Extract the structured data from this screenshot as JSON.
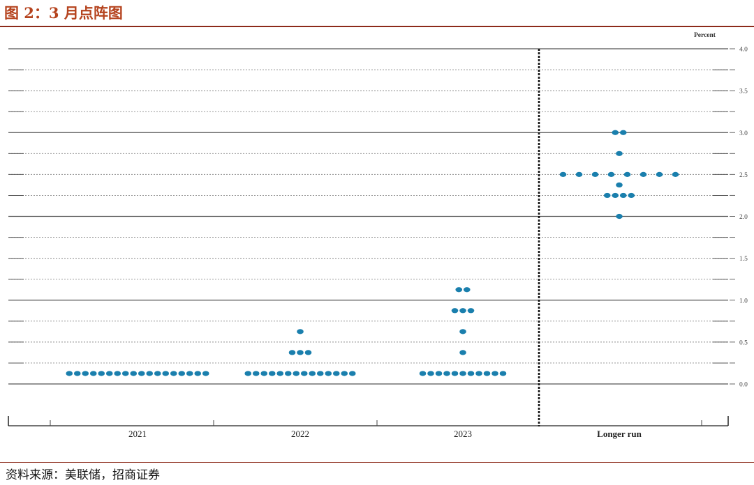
{
  "figure": {
    "title": "图 2：3 月点阵图",
    "source": "资料来源：美联储，招商证券"
  },
  "colors": {
    "dot": "#1a7fad",
    "title": "#b5431e",
    "rule": "#8c2a1a"
  },
  "chart_data": {
    "type": "scatter",
    "unit_label": "Percent",
    "ylim": [
      0,
      4
    ],
    "y_ticks": [
      {
        "value": 0,
        "label": "0.0"
      },
      {
        "value": 0.5,
        "label": "0.5"
      },
      {
        "value": 1,
        "label": "1.0"
      },
      {
        "value": 1.5,
        "label": "1.5"
      },
      {
        "value": 2,
        "label": "2.0"
      },
      {
        "value": 2.5,
        "label": "2.5"
      },
      {
        "value": 3,
        "label": "3.0"
      },
      {
        "value": 3.5,
        "label": "3.5"
      },
      {
        "value": 4,
        "label": "4.0"
      }
    ],
    "grid": true,
    "categories": [
      "2021",
      "2022",
      "2023",
      "Longer run"
    ],
    "dots": [
      {
        "category": "2021",
        "rows": [
          {
            "y": 0.125,
            "count": 18
          }
        ]
      },
      {
        "category": "2022",
        "rows": [
          {
            "y": 0.125,
            "count": 14
          },
          {
            "y": 0.375,
            "count": 3
          },
          {
            "y": 0.625,
            "count": 1
          }
        ]
      },
      {
        "category": "2023",
        "rows": [
          {
            "y": 0.125,
            "count": 11
          },
          {
            "y": 0.375,
            "count": 1
          },
          {
            "y": 0.625,
            "count": 1
          },
          {
            "y": 0.875,
            "count": 3
          },
          {
            "y": 1.125,
            "count": 2
          }
        ]
      },
      {
        "category": "Longer run",
        "rows": [
          {
            "y": 2.0,
            "count": 1
          },
          {
            "y": 2.25,
            "count": 4
          },
          {
            "y": 2.375,
            "count": 1
          },
          {
            "y": 2.5,
            "count": 8
          },
          {
            "y": 2.75,
            "count": 1
          },
          {
            "y": 3.0,
            "count": 2
          }
        ]
      }
    ]
  }
}
